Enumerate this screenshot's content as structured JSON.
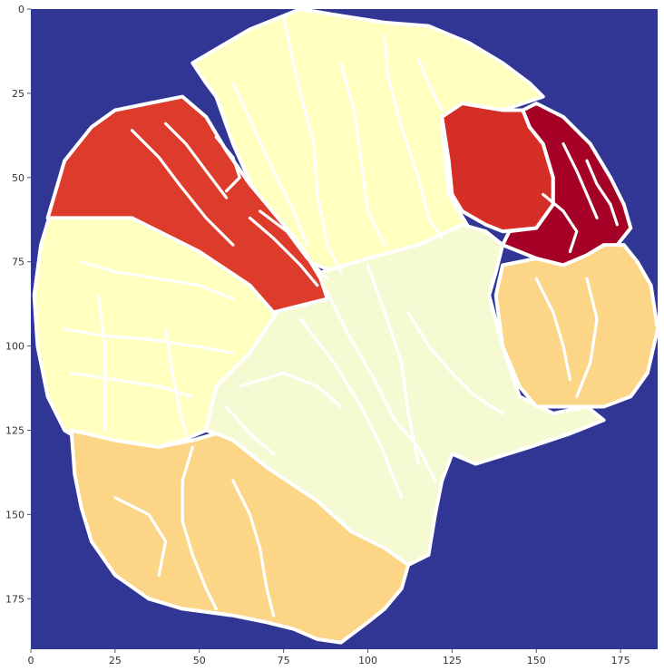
{
  "chart_data": {
    "type": "heatmap",
    "title": "",
    "xlabel": "",
    "ylabel": "",
    "xlim": [
      0,
      186
    ],
    "ylim": [
      190,
      0
    ],
    "grid": false,
    "colormap": "RdYlBu_r",
    "colors": {
      "background": "#313695",
      "boundary": "#ffffff",
      "pale_yellow": "#ffffbf",
      "lightest": "#f5fad2",
      "peach": "#fdd587",
      "red_orange": "#dd3c2c",
      "red": "#d52e26",
      "dark_red": "#a50026"
    },
    "x_ticks": [
      {
        "value": 0,
        "label": "0"
      },
      {
        "value": 25,
        "label": "25"
      },
      {
        "value": 50,
        "label": "50"
      },
      {
        "value": 75,
        "label": "75"
      },
      {
        "value": 100,
        "label": "100"
      },
      {
        "value": 125,
        "label": "125"
      },
      {
        "value": 150,
        "label": "150"
      },
      {
        "value": 175,
        "label": "175"
      }
    ],
    "y_ticks": [
      {
        "value": 0,
        "label": "0"
      },
      {
        "value": 25,
        "label": "25"
      },
      {
        "value": 50,
        "label": "50"
      },
      {
        "value": 75,
        "label": "75"
      },
      {
        "value": 100,
        "label": "100"
      },
      {
        "value": 125,
        "label": "125"
      },
      {
        "value": 150,
        "label": "150"
      },
      {
        "value": 175,
        "label": "175"
      }
    ],
    "regions": [
      {
        "name": "upper-segment",
        "color": "pale_yellow",
        "points": [
          [
            48,
            16
          ],
          [
            65,
            6
          ],
          [
            80,
            0
          ],
          [
            92,
            2
          ],
          [
            105,
            4
          ],
          [
            118,
            5
          ],
          [
            130,
            10
          ],
          [
            140,
            16
          ],
          [
            148,
            22
          ],
          [
            152,
            26
          ],
          [
            140,
            30
          ],
          [
            128,
            28
          ],
          [
            122,
            34
          ],
          [
            124,
            55
          ],
          [
            130,
            65
          ],
          [
            115,
            72
          ],
          [
            100,
            76
          ],
          [
            90,
            78
          ],
          [
            80,
            74
          ],
          [
            68,
            58
          ],
          [
            60,
            40
          ],
          [
            55,
            26
          ],
          [
            52,
            22
          ]
        ]
      },
      {
        "name": "left-segment",
        "color": "pale_yellow",
        "points": [
          [
            6,
            60
          ],
          [
            15,
            62
          ],
          [
            30,
            62
          ],
          [
            50,
            72
          ],
          [
            65,
            82
          ],
          [
            73,
            90
          ],
          [
            65,
            102
          ],
          [
            55,
            112
          ],
          [
            52,
            125
          ],
          [
            45,
            128
          ],
          [
            38,
            130
          ],
          [
            25,
            128
          ],
          [
            18,
            130
          ],
          [
            10,
            125
          ],
          [
            5,
            115
          ],
          [
            2,
            100
          ],
          [
            1,
            85
          ],
          [
            3,
            70
          ]
        ]
      },
      {
        "name": "center-segment",
        "color": "lightest",
        "points": [
          [
            73,
            90
          ],
          [
            80,
            80
          ],
          [
            90,
            77
          ],
          [
            100,
            74
          ],
          [
            115,
            70
          ],
          [
            128,
            64
          ],
          [
            135,
            66
          ],
          [
            140,
            70
          ],
          [
            138,
            78
          ],
          [
            136,
            85
          ],
          [
            140,
            100
          ],
          [
            145,
            115
          ],
          [
            155,
            120
          ],
          [
            165,
            118
          ],
          [
            170,
            122
          ],
          [
            160,
            126
          ],
          [
            148,
            130
          ],
          [
            132,
            135
          ],
          [
            125,
            132
          ],
          [
            122,
            140
          ],
          [
            120,
            150
          ],
          [
            118,
            162
          ],
          [
            112,
            165
          ],
          [
            108,
            162
          ],
          [
            102,
            160
          ],
          [
            95,
            155
          ],
          [
            85,
            146
          ],
          [
            70,
            136
          ],
          [
            60,
            128
          ],
          [
            52,
            125
          ],
          [
            55,
            112
          ],
          [
            65,
            102
          ]
        ]
      },
      {
        "name": "upper-left-red",
        "color": "red_orange",
        "points": [
          [
            5,
            62
          ],
          [
            10,
            45
          ],
          [
            18,
            35
          ],
          [
            25,
            30
          ],
          [
            35,
            28
          ],
          [
            45,
            26
          ],
          [
            52,
            32
          ],
          [
            58,
            42
          ],
          [
            65,
            52
          ],
          [
            70,
            58
          ],
          [
            80,
            70
          ],
          [
            86,
            80
          ],
          [
            88,
            86
          ],
          [
            80,
            88
          ],
          [
            72,
            90
          ],
          [
            65,
            82
          ],
          [
            50,
            72
          ],
          [
            30,
            62
          ],
          [
            15,
            62
          ]
        ]
      },
      {
        "name": "upper-right-red",
        "color": "red",
        "points": [
          [
            122,
            32
          ],
          [
            128,
            28
          ],
          [
            140,
            30
          ],
          [
            146,
            30
          ],
          [
            148,
            35
          ],
          [
            152,
            40
          ],
          [
            155,
            50
          ],
          [
            155,
            58
          ],
          [
            150,
            65
          ],
          [
            140,
            66
          ],
          [
            135,
            64
          ],
          [
            128,
            60
          ],
          [
            125,
            55
          ],
          [
            124,
            45
          ]
        ]
      },
      {
        "name": "upper-right-dark-red",
        "color": "dark_red",
        "points": [
          [
            146,
            30
          ],
          [
            150,
            28
          ],
          [
            158,
            32
          ],
          [
            166,
            40
          ],
          [
            172,
            50
          ],
          [
            176,
            58
          ],
          [
            178,
            65
          ],
          [
            174,
            70
          ],
          [
            168,
            72
          ],
          [
            164,
            75
          ],
          [
            160,
            77
          ],
          [
            155,
            77
          ],
          [
            150,
            74
          ],
          [
            145,
            72
          ],
          [
            140,
            70
          ],
          [
            142,
            66
          ],
          [
            150,
            65
          ],
          [
            155,
            58
          ],
          [
            155,
            50
          ],
          [
            152,
            40
          ],
          [
            148,
            35
          ]
        ]
      },
      {
        "name": "right-segment",
        "color": "peach",
        "points": [
          [
            140,
            76
          ],
          [
            150,
            74
          ],
          [
            158,
            76
          ],
          [
            165,
            73
          ],
          [
            170,
            70
          ],
          [
            176,
            70
          ],
          [
            180,
            75
          ],
          [
            184,
            82
          ],
          [
            186,
            95
          ],
          [
            183,
            108
          ],
          [
            178,
            115
          ],
          [
            170,
            118
          ],
          [
            160,
            118
          ],
          [
            150,
            118
          ],
          [
            145,
            112
          ],
          [
            140,
            100
          ],
          [
            138,
            85
          ]
        ]
      },
      {
        "name": "bottom-segment",
        "color": "peach",
        "points": [
          [
            12,
            125
          ],
          [
            25,
            128
          ],
          [
            38,
            130
          ],
          [
            48,
            128
          ],
          [
            55,
            126
          ],
          [
            60,
            128
          ],
          [
            70,
            136
          ],
          [
            85,
            146
          ],
          [
            95,
            155
          ],
          [
            105,
            160
          ],
          [
            112,
            165
          ],
          [
            110,
            172
          ],
          [
            105,
            178
          ],
          [
            100,
            182
          ],
          [
            92,
            188
          ],
          [
            85,
            187
          ],
          [
            78,
            184
          ],
          [
            70,
            182
          ],
          [
            60,
            180
          ],
          [
            45,
            178
          ],
          [
            35,
            175
          ],
          [
            25,
            168
          ],
          [
            18,
            158
          ],
          [
            15,
            148
          ],
          [
            13,
            138
          ]
        ]
      }
    ],
    "boundaries": [
      [
        [
          75,
          2
        ],
        [
          77,
          12
        ],
        [
          80,
          25
        ],
        [
          84,
          40
        ],
        [
          85,
          55
        ],
        [
          88,
          70
        ],
        [
          92,
          78
        ]
      ],
      [
        [
          105,
          8
        ],
        [
          106,
          20
        ],
        [
          110,
          35
        ],
        [
          115,
          50
        ],
        [
          118,
          62
        ],
        [
          122,
          68
        ]
      ],
      [
        [
          92,
          16
        ],
        [
          96,
          30
        ],
        [
          98,
          45
        ],
        [
          100,
          60
        ],
        [
          105,
          70
        ]
      ],
      [
        [
          60,
          22
        ],
        [
          66,
          35
        ],
        [
          72,
          48
        ],
        [
          78,
          60
        ],
        [
          82,
          70
        ]
      ],
      [
        [
          115,
          15
        ],
        [
          118,
          22
        ],
        [
          122,
          30
        ]
      ],
      [
        [
          100,
          76
        ],
        [
          105,
          90
        ],
        [
          110,
          105
        ],
        [
          112,
          120
        ],
        [
          115,
          135
        ]
      ],
      [
        [
          88,
          84
        ],
        [
          95,
          98
        ],
        [
          102,
          110
        ],
        [
          108,
          122
        ],
        [
          115,
          130
        ],
        [
          120,
          140
        ]
      ],
      [
        [
          80,
          92
        ],
        [
          90,
          105
        ],
        [
          98,
          118
        ],
        [
          104,
          130
        ],
        [
          110,
          145
        ]
      ],
      [
        [
          112,
          90
        ],
        [
          118,
          100
        ],
        [
          125,
          108
        ],
        [
          132,
          115
        ],
        [
          140,
          120
        ]
      ],
      [
        [
          62,
          112
        ],
        [
          75,
          108
        ],
        [
          85,
          112
        ],
        [
          92,
          118
        ]
      ],
      [
        [
          58,
          118
        ],
        [
          65,
          126
        ],
        [
          72,
          132
        ]
      ],
      [
        [
          15,
          75
        ],
        [
          25,
          78
        ],
        [
          38,
          80
        ],
        [
          50,
          82
        ],
        [
          60,
          86
        ]
      ],
      [
        [
          10,
          95
        ],
        [
          22,
          97
        ],
        [
          35,
          98
        ],
        [
          48,
          100
        ],
        [
          60,
          102
        ]
      ],
      [
        [
          12,
          108
        ],
        [
          25,
          110
        ],
        [
          38,
          112
        ],
        [
          48,
          115
        ]
      ],
      [
        [
          20,
          85
        ],
        [
          22,
          100
        ],
        [
          22,
          115
        ],
        [
          22,
          125
        ]
      ],
      [
        [
          40,
          95
        ],
        [
          42,
          108
        ],
        [
          44,
          118
        ],
        [
          46,
          126
        ]
      ],
      [
        [
          48,
          130
        ],
        [
          45,
          140
        ],
        [
          45,
          152
        ],
        [
          48,
          162
        ],
        [
          52,
          172
        ],
        [
          55,
          178
        ]
      ],
      [
        [
          25,
          145
        ],
        [
          35,
          150
        ],
        [
          40,
          158
        ],
        [
          38,
          168
        ]
      ],
      [
        [
          60,
          140
        ],
        [
          65,
          150
        ],
        [
          68,
          160
        ],
        [
          70,
          172
        ],
        [
          72,
          180
        ]
      ],
      [
        [
          165,
          80
        ],
        [
          168,
          92
        ],
        [
          166,
          105
        ],
        [
          162,
          115
        ]
      ],
      [
        [
          150,
          80
        ],
        [
          155,
          90
        ],
        [
          158,
          100
        ],
        [
          160,
          110
        ]
      ],
      [
        [
          30,
          36
        ],
        [
          38,
          44
        ],
        [
          44,
          52
        ],
        [
          52,
          62
        ],
        [
          60,
          70
        ]
      ],
      [
        [
          40,
          34
        ],
        [
          46,
          40
        ],
        [
          52,
          48
        ],
        [
          58,
          56
        ]
      ],
      [
        [
          55,
          38
        ],
        [
          60,
          44
        ],
        [
          62,
          50
        ],
        [
          58,
          54
        ]
      ],
      [
        [
          65,
          62
        ],
        [
          72,
          68
        ],
        [
          80,
          76
        ],
        [
          85,
          82
        ]
      ],
      [
        [
          68,
          60
        ],
        [
          76,
          66
        ],
        [
          82,
          74
        ],
        [
          88,
          80
        ]
      ],
      [
        [
          158,
          40
        ],
        [
          162,
          48
        ],
        [
          165,
          55
        ],
        [
          168,
          62
        ]
      ],
      [
        [
          165,
          45
        ],
        [
          168,
          52
        ],
        [
          172,
          58
        ],
        [
          174,
          64
        ]
      ],
      [
        [
          152,
          55
        ],
        [
          158,
          60
        ],
        [
          162,
          66
        ],
        [
          160,
          72
        ]
      ]
    ]
  }
}
